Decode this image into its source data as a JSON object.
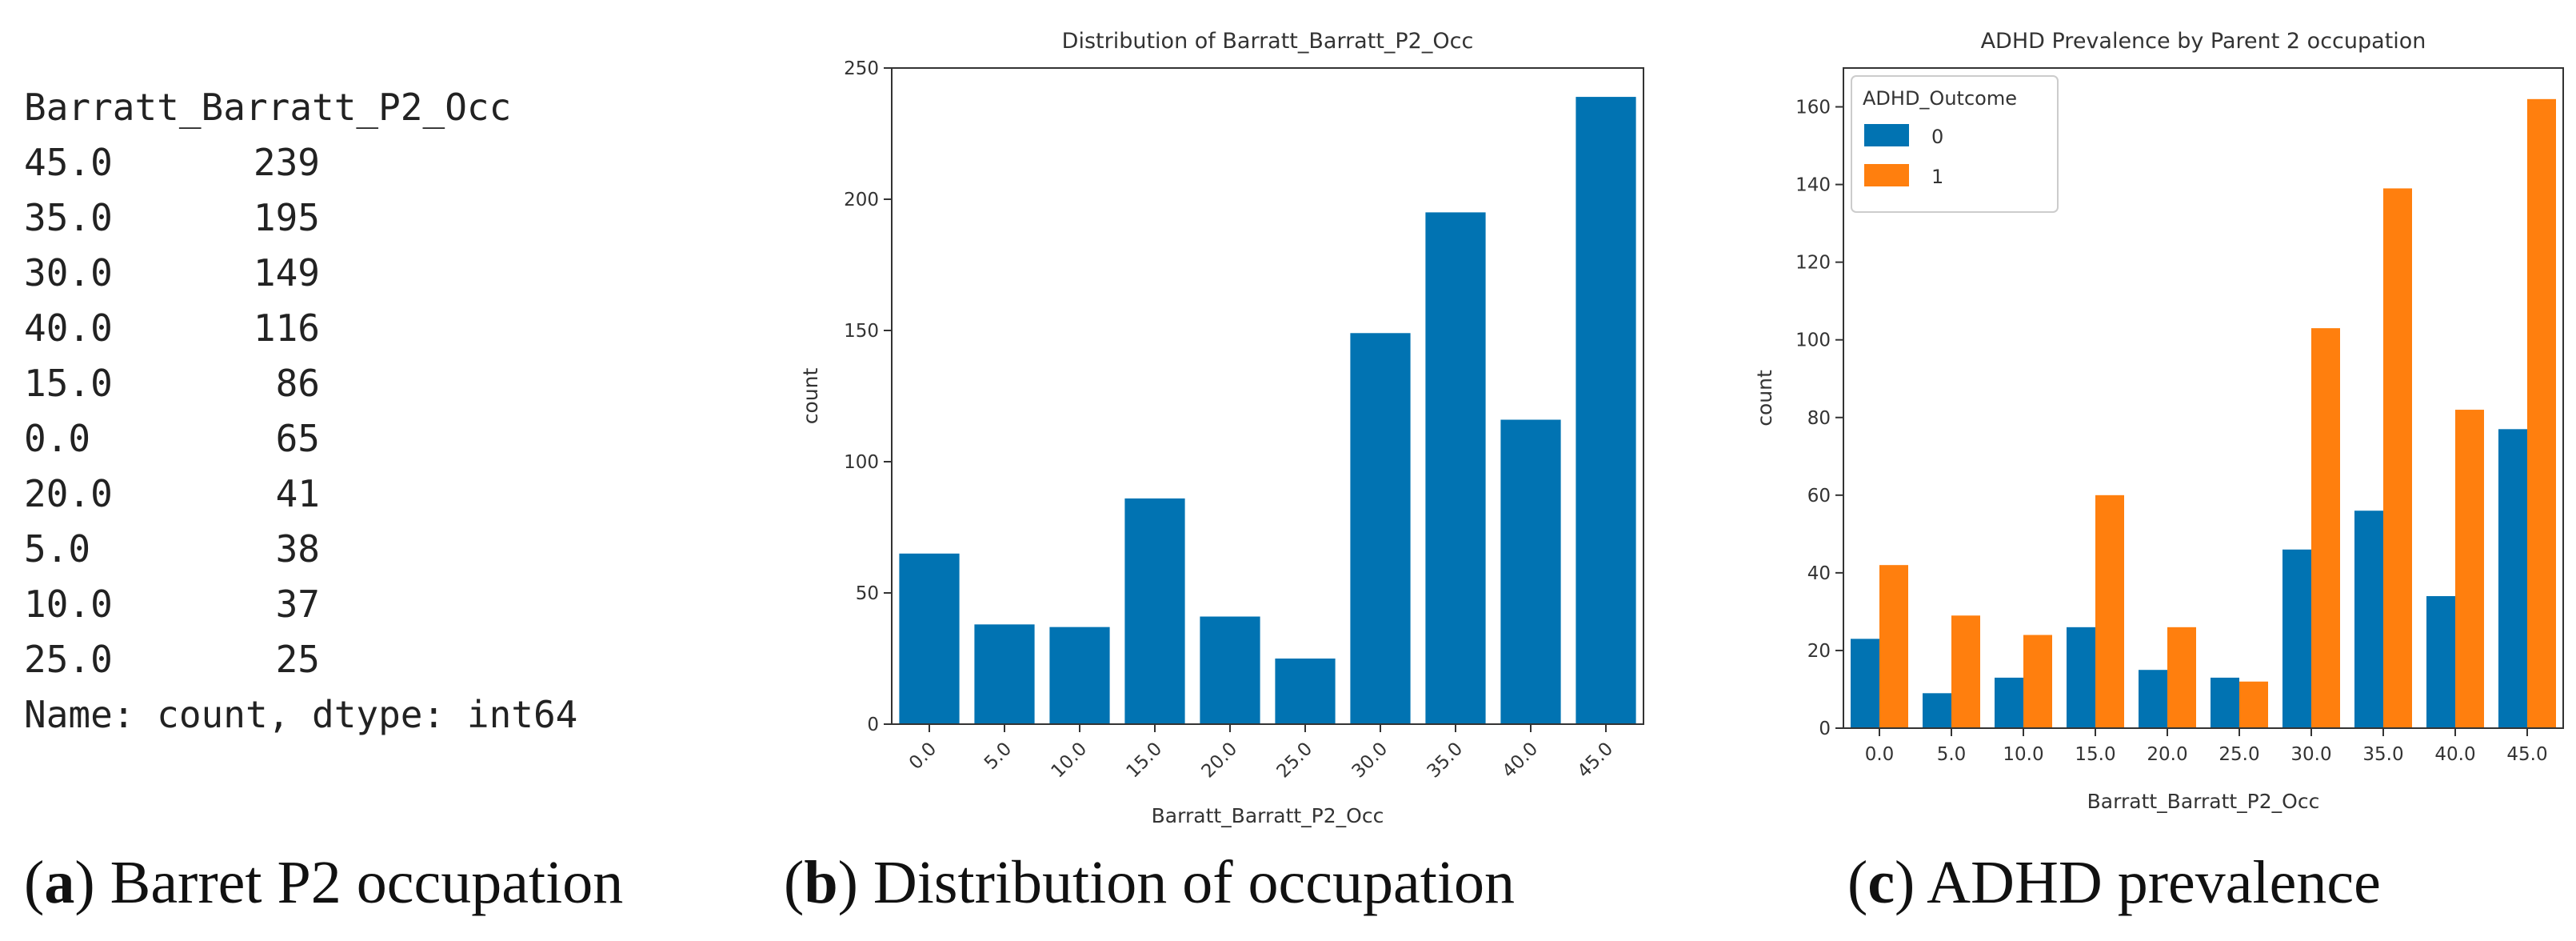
{
  "panel_a": {
    "header": "Barratt_Barratt_P2_Occ",
    "rows": [
      {
        "key": "45.0",
        "value": "239"
      },
      {
        "key": "35.0",
        "value": "195"
      },
      {
        "key": "30.0",
        "value": "149"
      },
      {
        "key": "40.0",
        "value": "116"
      },
      {
        "key": "15.0",
        "value": "86"
      },
      {
        "key": "0.0",
        "value": "65"
      },
      {
        "key": "20.0",
        "value": "41"
      },
      {
        "key": "5.0",
        "value": "38"
      },
      {
        "key": "10.0",
        "value": "37"
      },
      {
        "key": "25.0",
        "value": "25"
      }
    ],
    "footer": "Name: count, dtype: int64"
  },
  "captions": {
    "a_letter": "a",
    "a_text": "Barret P2 occupation",
    "b_letter": "b",
    "b_text": "Distribution of occupation",
    "c_letter": "c",
    "c_text": "ADHD prevalence"
  },
  "chart_data": [
    {
      "type": "bar",
      "title": "Distribution of Barratt_Barratt_P2_Occ",
      "xlabel": "Barratt_Barratt_P2_Occ",
      "ylabel": "count",
      "categories": [
        "0.0",
        "5.0",
        "10.0",
        "15.0",
        "20.0",
        "25.0",
        "30.0",
        "35.0",
        "40.0",
        "45.0"
      ],
      "values": [
        65,
        38,
        37,
        86,
        41,
        25,
        149,
        195,
        116,
        239
      ],
      "ylim": [
        0,
        250
      ],
      "yticks": [
        0,
        50,
        100,
        150,
        200,
        250
      ],
      "color": "#0173b2",
      "xtick_rotation": -45,
      "grid": false
    },
    {
      "type": "bar",
      "title": "ADHD Prevalence by Parent 2 occupation",
      "xlabel": "Barratt_Barratt_P2_Occ",
      "ylabel": "count",
      "categories": [
        "0.0",
        "5.0",
        "10.0",
        "15.0",
        "20.0",
        "25.0",
        "30.0",
        "35.0",
        "40.0",
        "45.0"
      ],
      "series": [
        {
          "name": "0",
          "values": [
            23,
            9,
            13,
            26,
            15,
            13,
            46,
            56,
            34,
            77
          ],
          "color": "#0173b2"
        },
        {
          "name": "1",
          "values": [
            42,
            29,
            24,
            60,
            26,
            12,
            103,
            139,
            82,
            162
          ],
          "color": "#ff7f0e"
        }
      ],
      "legend_title": "ADHD_Outcome",
      "legend": "top-left",
      "ylim": [
        0,
        170
      ],
      "yticks": [
        0,
        20,
        40,
        60,
        80,
        100,
        120,
        140,
        160
      ],
      "grid": false
    }
  ]
}
